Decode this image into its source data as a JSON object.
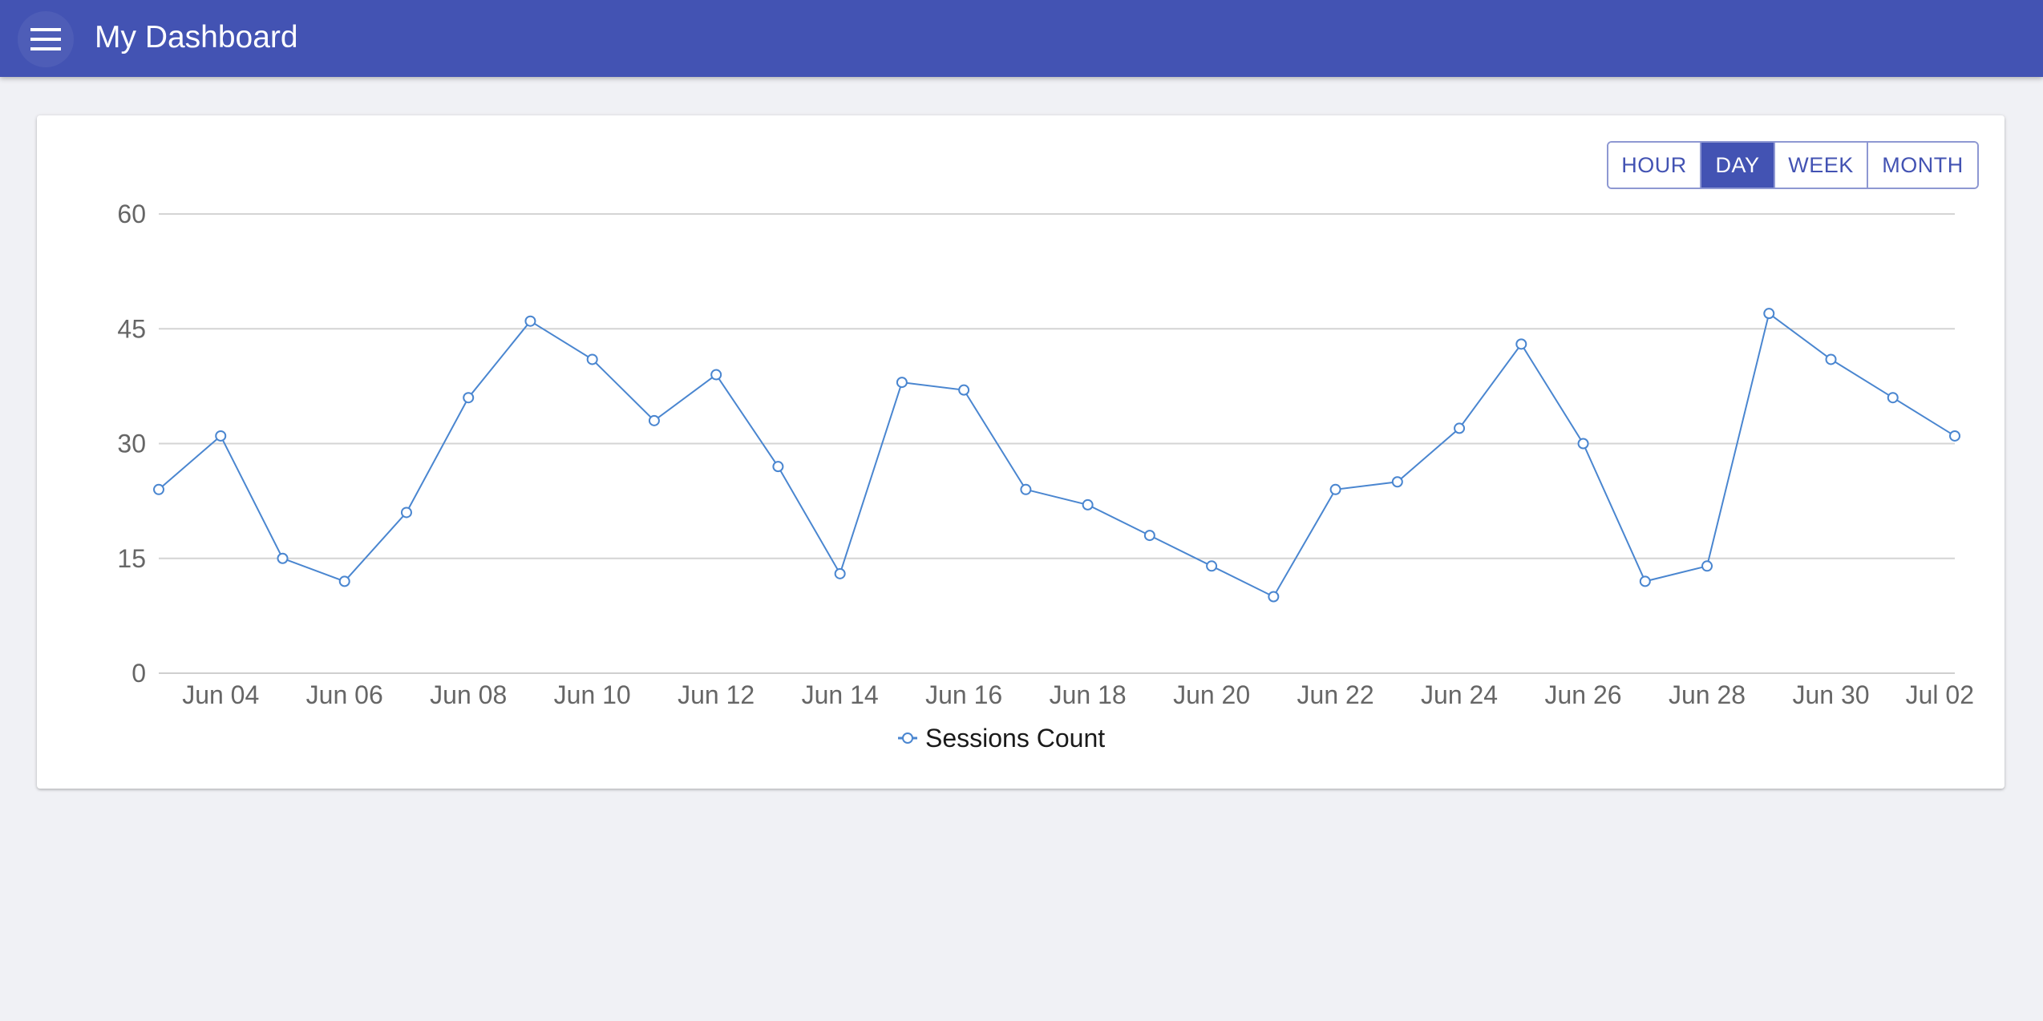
{
  "app": {
    "title": "My Dashboard",
    "menu_icon": "hamburger-menu-icon",
    "colors": {
      "appbar": "#4353b3",
      "background": "#f0f1f5",
      "line": "#4a86d0"
    }
  },
  "range_selector": {
    "buttons": [
      {
        "label": "HOUR",
        "active": false
      },
      {
        "label": "DAY",
        "active": true
      },
      {
        "label": "WEEK",
        "active": false
      },
      {
        "label": "MONTH",
        "active": false
      }
    ]
  },
  "chart_data": {
    "type": "line",
    "title": "",
    "xlabel": "",
    "ylabel": "",
    "x": [
      "Jun 03",
      "Jun 04",
      "Jun 05",
      "Jun 06",
      "Jun 07",
      "Jun 08",
      "Jun 09",
      "Jun 10",
      "Jun 11",
      "Jun 12",
      "Jun 13",
      "Jun 14",
      "Jun 15",
      "Jun 16",
      "Jun 17",
      "Jun 18",
      "Jun 19",
      "Jun 20",
      "Jun 21",
      "Jun 22",
      "Jun 23",
      "Jun 24",
      "Jun 25",
      "Jun 26",
      "Jun 27",
      "Jun 28",
      "Jun 29",
      "Jun 30",
      "Jul 01",
      "Jul 02"
    ],
    "series": [
      {
        "name": "Sessions Count",
        "values": [
          24,
          31,
          15,
          12,
          21,
          36,
          46,
          41,
          33,
          39,
          27,
          13,
          38,
          37,
          24,
          22,
          18,
          14,
          10,
          24,
          25,
          32,
          43,
          30,
          12,
          14,
          47,
          41,
          36,
          31
        ]
      }
    ],
    "x_tick_labels": [
      "Jun 04",
      "Jun 06",
      "Jun 08",
      "Jun 10",
      "Jun 12",
      "Jun 14",
      "Jun 16",
      "Jun 18",
      "Jun 20",
      "Jun 22",
      "Jun 24",
      "Jun 26",
      "Jun 28",
      "Jun 30",
      "Jul 02"
    ],
    "y_ticks": [
      0,
      15,
      30,
      45,
      60
    ],
    "ylim": [
      0,
      60
    ],
    "grid": true,
    "legend_position": "bottom-center"
  }
}
